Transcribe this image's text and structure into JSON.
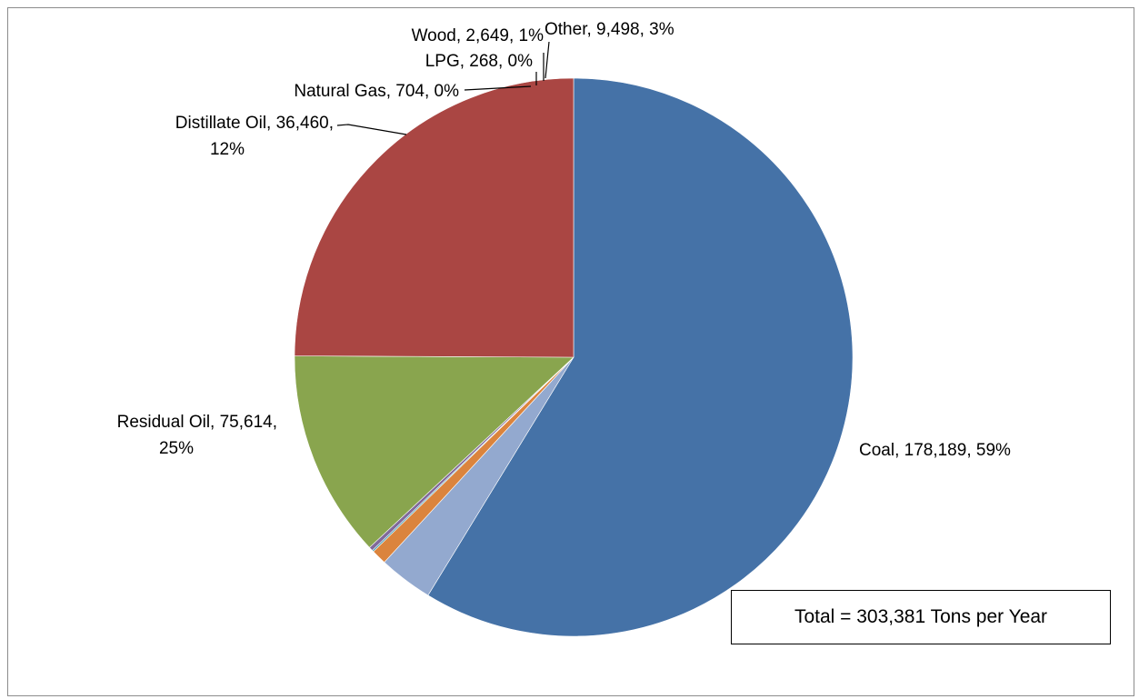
{
  "chart_data": {
    "type": "pie",
    "title": "",
    "slices": [
      {
        "name": "Coal",
        "value": 178189,
        "value_label": "178,189",
        "percent_label": "59%",
        "color": "#4572A7"
      },
      {
        "name": "Other",
        "value": 9498,
        "value_label": "9,498",
        "percent_label": "3%",
        "color": "#93A9CF"
      },
      {
        "name": "Wood",
        "value": 2649,
        "value_label": "2,649",
        "percent_label": "1%",
        "color": "#DB843D"
      },
      {
        "name": "LPG",
        "value": 268,
        "value_label": "268",
        "percent_label": "0%",
        "color": "#3D96AE"
      },
      {
        "name": "Natural Gas",
        "value": 704,
        "value_label": "704",
        "percent_label": "0%",
        "color": "#80699B"
      },
      {
        "name": "Distillate Oil",
        "value": 36460,
        "value_label": "36,460",
        "percent_label": "12%",
        "color": "#89A54E"
      },
      {
        "name": "Residual Oil",
        "value": 75614,
        "value_label": "75,614",
        "percent_label": "25%",
        "color": "#AA4643"
      }
    ],
    "direction": "clockwise",
    "start_angle": "12 o'clock",
    "legend": "none",
    "data_labels": "outside with leader lines",
    "annotation": "Total = 303,381 Tons per Year"
  }
}
